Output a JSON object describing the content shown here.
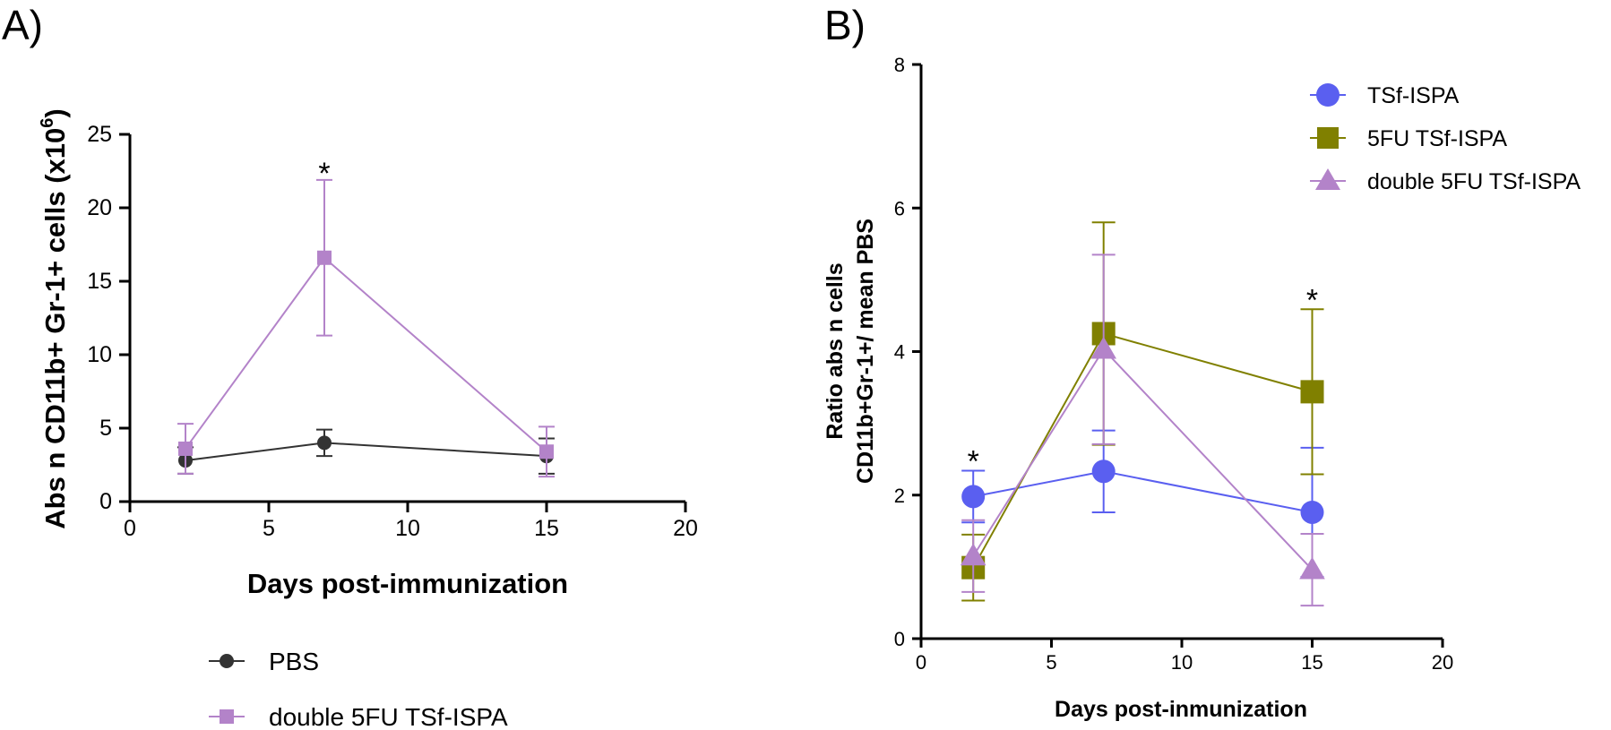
{
  "chart_data": [
    {
      "type": "line",
      "panel_label": "A)",
      "xlabel": "Days post-immunization",
      "ylabel_main": "Abs n CD11b+ Gr-1+ cells (x10",
      "ylabel_sup": "6",
      "ylabel_close": ")",
      "xlim": [
        0,
        20
      ],
      "ylim": [
        0,
        25
      ],
      "xticks": [
        0,
        5,
        10,
        15,
        20
      ],
      "yticks": [
        0,
        5,
        10,
        15,
        20,
        25
      ],
      "xtick_labels": [
        "0",
        "5",
        "10",
        "15",
        "20"
      ],
      "ytick_labels": [
        "0",
        "5",
        "10",
        "15",
        "20",
        "25"
      ],
      "series": [
        {
          "name": "PBS",
          "marker": "circle",
          "color": "#333333",
          "x": [
            2,
            7,
            15
          ],
          "y": [
            2.8,
            4.0,
            3.1
          ],
          "err": [
            0.9,
            0.9,
            1.2
          ]
        },
        {
          "name": "double 5FU TSf-ISPA",
          "marker": "square",
          "color": "#b383c9",
          "x": [
            2,
            7,
            15
          ],
          "y": [
            3.6,
            16.6,
            3.4
          ],
          "err": [
            1.7,
            5.3,
            1.7
          ]
        }
      ],
      "annotations": [
        {
          "text": "*",
          "x": 7,
          "y": 22.5
        }
      ],
      "legend": [
        {
          "label": "PBS"
        },
        {
          "label": "double 5FU TSf-ISPA"
        }
      ]
    },
    {
      "type": "line",
      "panel_label": "B)",
      "xlabel": "Days post-inmunization",
      "ylabel_line1": "Ratio abs n cells",
      "ylabel_line2": "CD11b+Gr-1+/ mean PBS",
      "xlim": [
        0,
        20
      ],
      "ylim": [
        0,
        8
      ],
      "xticks": [
        0,
        5,
        10,
        15,
        20
      ],
      "yticks": [
        0,
        2,
        4,
        6,
        8
      ],
      "xtick_labels": [
        "0",
        "5",
        "10",
        "15",
        "20"
      ],
      "ytick_labels": [
        "0",
        "2",
        "4",
        "6",
        "8"
      ],
      "series": [
        {
          "name": "TSf-ISPA",
          "marker": "circle",
          "color": "#5a5ff0",
          "x": [
            2,
            7,
            15
          ],
          "y": [
            1.98,
            2.33,
            1.76
          ],
          "err": [
            0.36,
            0.57,
            0.9
          ]
        },
        {
          "name": "5FU TSf-ISPA",
          "marker": "square",
          "color": "#808000",
          "x": [
            2,
            7,
            15
          ],
          "y": [
            0.99,
            4.25,
            3.44
          ],
          "err": [
            0.46,
            1.55,
            1.15
          ]
        },
        {
          "name": "double 5FU TSf-ISPA",
          "marker": "triangle",
          "color": "#b383c9",
          "x": [
            2,
            7,
            15
          ],
          "y": [
            1.15,
            4.03,
            0.96
          ],
          "err": [
            0.5,
            1.32,
            0.5
          ]
        }
      ],
      "annotations": [
        {
          "text": "*",
          "x": 2,
          "y": 2.5
        },
        {
          "text": "*",
          "x": 15,
          "y": 4.75
        }
      ],
      "legend": [
        {
          "label": "TSf-ISPA"
        },
        {
          "label": "5FU TSf-ISPA"
        },
        {
          "label": "double 5FU TSf-ISPA"
        }
      ]
    }
  ]
}
